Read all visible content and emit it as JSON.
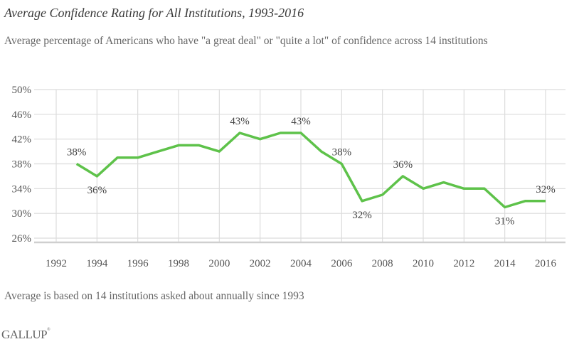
{
  "chart_data": {
    "type": "line",
    "title": "Average Confidence Rating for All Institutions, 1993-2016",
    "subtitle": "Average percentage of Americans who have \"a great deal\" or \"quite a lot\" of confidence across 14 institutions",
    "xlabel": "",
    "ylabel": "",
    "xlim": [
      1991.6,
      2016.9
    ],
    "ylim": [
      25,
      50
    ],
    "x_ticks": [
      1992,
      1994,
      1996,
      1998,
      2000,
      2002,
      2004,
      2006,
      2008,
      2010,
      2012,
      2014,
      2016
    ],
    "x_tick_labels": [
      "1992",
      "1994",
      "1996",
      "1998",
      "2000",
      "2002",
      "2004",
      "2006",
      "2008",
      "2010",
      "2012",
      "2014",
      "2016"
    ],
    "y_ticks": [
      26,
      30,
      34,
      38,
      42,
      46,
      50
    ],
    "y_tick_labels": [
      "26%",
      "30%",
      "34%",
      "38%",
      "42%",
      "46%",
      "50%"
    ],
    "grid": true,
    "legend": "none",
    "series": [
      {
        "name": "Average confidence",
        "color": "#5ec24a",
        "x": [
          1993,
          1994,
          1995,
          1996,
          1997,
          1998,
          1999,
          2000,
          2001,
          2002,
          2003,
          2004,
          2005,
          2006,
          2007,
          2008,
          2009,
          2010,
          2011,
          2012,
          2013,
          2014,
          2015,
          2016
        ],
        "values": [
          38,
          36,
          39,
          39,
          40,
          41,
          41,
          40,
          43,
          42,
          43,
          43,
          40,
          38,
          32,
          33,
          36,
          34,
          35,
          34,
          34,
          31,
          32,
          32
        ]
      }
    ],
    "data_labels": [
      {
        "x": 1993,
        "y": 38,
        "text": "38%",
        "position": "above"
      },
      {
        "x": 1994,
        "y": 36,
        "text": "36%",
        "position": "below"
      },
      {
        "x": 2001,
        "y": 43,
        "text": "43%",
        "position": "above"
      },
      {
        "x": 2004,
        "y": 43,
        "text": "43%",
        "position": "above"
      },
      {
        "x": 2006,
        "y": 38,
        "text": "38%",
        "position": "above"
      },
      {
        "x": 2007,
        "y": 32,
        "text": "32%",
        "position": "below"
      },
      {
        "x": 2009,
        "y": 36,
        "text": "36%",
        "position": "above"
      },
      {
        "x": 2014,
        "y": 31,
        "text": "31%",
        "position": "below"
      },
      {
        "x": 2016,
        "y": 32,
        "text": "32%",
        "position": "above"
      }
    ],
    "footnote": "Average is based on 14 institutions asked about annually since 1993",
    "source": "GALLUP"
  },
  "colors": {
    "line": "#5ec24a",
    "grid": "#dcdcdc",
    "axis": "#cfcfcf"
  }
}
